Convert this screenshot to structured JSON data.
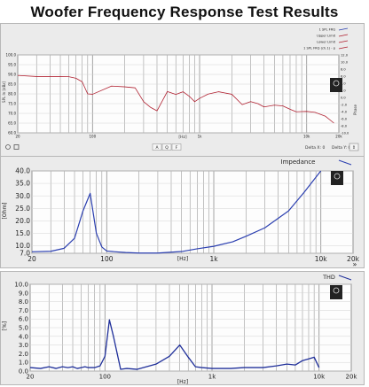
{
  "page": {
    "title": "Woofer Frequency Response Test Results"
  },
  "colors": {
    "spl": "#b02030",
    "impedance": "#2b3fb0",
    "thd": "#1f2f9a",
    "grid": "#9a9a9a",
    "panel_bg": "#e9e9e9",
    "plot_bg": "#fdfdfd"
  },
  "panel1": {
    "legend": [
      "1 SPL FRQ",
      "Upper Limit",
      "Lower Limit",
      "1 SPL FRQ (ch.1) - p"
    ],
    "y_ticks": [
      "100.0",
      "95.0",
      "90.0",
      "85.0",
      "80.0",
      "75.0",
      "70.0",
      "65.0",
      "60.0"
    ],
    "y_left_label": "SPL In [dBz]",
    "right_ticks": [
      "12.0",
      "10.0",
      "8.0",
      "6.0",
      "4.0",
      "2.0",
      "0.0",
      "-2.0",
      "-4.0",
      "-6.0",
      "-8.0",
      "-10.0"
    ],
    "right_label": "Phase",
    "x_ticks": [
      "20",
      "100",
      "1k",
      "10k",
      "20k"
    ],
    "x_unit": "[Hz]",
    "delta": "Delta X: 0",
    "delta_y": "Delta Y: 0",
    "toolbar_buttons": [
      "A",
      "Q",
      "F"
    ]
  },
  "panel2": {
    "title": "Impedance",
    "y_label": "[Ohm]",
    "x_unit": "[Hz]",
    "x_ticks": [
      "20",
      "100",
      "1k",
      "10k",
      "20k"
    ],
    "y_ticks": [
      "7.0",
      "10.0",
      "15.0",
      "20.0",
      "25.0",
      "30.0",
      "35.0",
      "40.0"
    ]
  },
  "panel3": {
    "title": "THD",
    "y_label": "[%]",
    "x_unit": "[Hz]",
    "x_ticks": [
      "20",
      "100",
      "1k",
      "10k",
      "20k"
    ],
    "y_ticks": [
      "0.0",
      "1.0",
      "2.0",
      "3.0",
      "4.0",
      "5.0",
      "6.0",
      "7.0",
      "8.0",
      "9.0",
      "10.0"
    ]
  },
  "chart_data": [
    {
      "type": "line",
      "xscale": "log",
      "xlim": [
        20,
        20000
      ],
      "ylim": [
        60,
        100
      ],
      "ylabel": "SPL In [dBz]",
      "xlabel": "[Hz]",
      "series": [
        {
          "name": "1 SPL FRQ",
          "x": [
            20,
            30,
            40,
            50,
            60,
            70,
            80,
            90,
            100,
            150,
            200,
            250,
            300,
            350,
            400,
            500,
            600,
            700,
            800,
            900,
            1000,
            1200,
            1500,
            2000,
            2500,
            3000,
            3500,
            4000,
            5000,
            6000,
            7000,
            8000,
            9000,
            10000,
            12000,
            15000,
            18000
          ],
          "y": [
            89.5,
            88.9,
            88.9,
            88.9,
            88.8,
            88.0,
            86.2,
            80.0,
            79.8,
            84.0,
            83.6,
            83.1,
            76.0,
            73.0,
            71.3,
            81.2,
            79.7,
            81.1,
            78.8,
            76.0,
            77.7,
            79.9,
            81.1,
            79.8,
            74.5,
            76.0,
            75.0,
            73.3,
            74.2,
            73.8,
            72.1,
            70.8,
            70.9,
            71.0,
            70.5,
            68.5,
            65.0
          ]
        }
      ],
      "grid": true,
      "legend": "top-right"
    },
    {
      "type": "line",
      "title": "Impedance",
      "xscale": "log",
      "xlim": [
        20,
        20000
      ],
      "ylim": [
        7,
        40
      ],
      "ylabel": "[Ohm]",
      "xlabel": "[Hz]",
      "series": [
        {
          "x": [
            20,
            30,
            40,
            50,
            60,
            70,
            80,
            90,
            100,
            120,
            150,
            200,
            300,
            500,
            700,
            1000,
            1500,
            2000,
            3000,
            5000,
            7000,
            10000
          ],
          "y": [
            7.6,
            7.8,
            9.0,
            13.0,
            24.0,
            31.0,
            15.0,
            9.5,
            7.9,
            7.6,
            7.3,
            7.1,
            7.1,
            7.7,
            8.8,
            9.8,
            11.6,
            13.8,
            17.2,
            24.0,
            31.5,
            40.0
          ]
        }
      ],
      "grid": true,
      "legend": "top-right"
    },
    {
      "type": "line",
      "title": "THD",
      "xscale": "log",
      "xlim": [
        20,
        20000
      ],
      "ylim": [
        0,
        10
      ],
      "ylabel": "[%]",
      "xlabel": "[Hz]",
      "series": [
        {
          "x": [
            20,
            25,
            30,
            35,
            40,
            45,
            50,
            55,
            60,
            65,
            70,
            80,
            90,
            100,
            110,
            120,
            140,
            160,
            200,
            300,
            400,
            500,
            600,
            700,
            800,
            1000,
            1500,
            2000,
            3000,
            4000,
            5000,
            6000,
            7000,
            8000,
            9000,
            10000
          ],
          "y": [
            0.4,
            0.3,
            0.5,
            0.3,
            0.5,
            0.4,
            0.5,
            0.3,
            0.4,
            0.5,
            0.4,
            0.4,
            0.6,
            1.7,
            5.9,
            4.0,
            0.2,
            0.3,
            0.2,
            0.8,
            1.7,
            3.0,
            1.6,
            0.5,
            0.4,
            0.3,
            0.3,
            0.4,
            0.4,
            0.6,
            0.8,
            0.7,
            1.2,
            1.4,
            1.6,
            0.4
          ]
        }
      ],
      "grid": true,
      "legend": "top-right"
    }
  ]
}
